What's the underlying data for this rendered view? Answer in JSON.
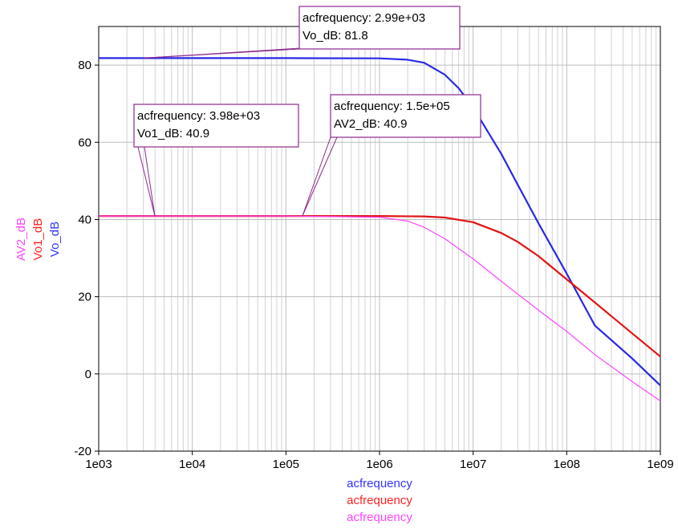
{
  "chart_data": {
    "type": "line",
    "x_scale": "log",
    "xlim": [
      1000,
      1000000000
    ],
    "ylim": [
      -20,
      90
    ],
    "grid": true,
    "x_ticks": [
      {
        "value": 1000,
        "label": "1e03"
      },
      {
        "value": 10000,
        "label": "1e04"
      },
      {
        "value": 100000,
        "label": "1e05"
      },
      {
        "value": 1000000,
        "label": "1e06"
      },
      {
        "value": 10000000,
        "label": "1e07"
      },
      {
        "value": 100000000,
        "label": "1e08"
      },
      {
        "value": 1000000000,
        "label": "1e09"
      }
    ],
    "y_ticks": [
      {
        "value": -20,
        "label": "-20"
      },
      {
        "value": 0,
        "label": "0"
      },
      {
        "value": 20,
        "label": "20"
      },
      {
        "value": 40,
        "label": "40"
      },
      {
        "value": 60,
        "label": "60"
      },
      {
        "value": 80,
        "label": "80"
      }
    ],
    "x_labels": [
      {
        "text": "acfrequency",
        "color": "#3333ff"
      },
      {
        "text": "acfrequency",
        "color": "#ff2222"
      },
      {
        "text": "acfrequency",
        "color": "#ff44ff"
      }
    ],
    "y_labels": [
      {
        "text": "AV2_dB",
        "color": "#ff44ff"
      },
      {
        "text": "Vo1_dB",
        "color": "#ff2222"
      },
      {
        "text": "Vo_dB",
        "color": "#3333ff"
      }
    ],
    "series": [
      {
        "name": "Vo_dB",
        "color": "#2a2ae6",
        "points": [
          [
            1000,
            81.8
          ],
          [
            100000,
            81.8
          ],
          [
            1000000,
            81.75
          ],
          [
            2000000,
            81.4
          ],
          [
            3000000,
            80.6
          ],
          [
            5000000,
            77.5
          ],
          [
            7000000,
            74.0
          ],
          [
            10000000,
            69.0
          ],
          [
            15000000,
            62.0
          ],
          [
            20000000,
            57.0
          ],
          [
            30000000,
            49.0
          ],
          [
            50000000,
            39.0
          ],
          [
            100000000,
            26.0
          ],
          [
            200000000,
            12.5
          ],
          [
            500000000,
            4.0
          ],
          [
            1000000000,
            -3.0
          ]
        ]
      },
      {
        "name": "Vo1_dB",
        "color": "#e01515",
        "points": [
          [
            1000,
            40.9
          ],
          [
            100000,
            40.9
          ],
          [
            1000000,
            40.9
          ],
          [
            3000000,
            40.8
          ],
          [
            5000000,
            40.5
          ],
          [
            10000000,
            39.3
          ],
          [
            20000000,
            36.5
          ],
          [
            30000000,
            34.2
          ],
          [
            50000000,
            30.5
          ],
          [
            100000000,
            24.5
          ],
          [
            200000000,
            18.5
          ],
          [
            500000000,
            10.5
          ],
          [
            1000000000,
            4.5
          ]
        ]
      },
      {
        "name": "AV2_dB",
        "color": "#ff44ff",
        "points": [
          [
            1000,
            40.9
          ],
          [
            100000,
            40.9
          ],
          [
            1000000,
            40.6
          ],
          [
            2000000,
            39.6
          ],
          [
            3000000,
            38.0
          ],
          [
            5000000,
            35.0
          ],
          [
            10000000,
            29.8
          ],
          [
            20000000,
            24.0
          ],
          [
            50000000,
            16.5
          ],
          [
            100000000,
            11.0
          ],
          [
            200000000,
            5.0
          ],
          [
            500000000,
            -2.0
          ],
          [
            1000000000,
            -7.0
          ]
        ]
      }
    ],
    "annotations": [
      {
        "line1": "acfrequency: 2.99e+03",
        "line2": "Vo_dB: 81.8",
        "x": 2990,
        "y": 81.8
      },
      {
        "line1": "acfrequency: 3.98e+03",
        "line2": "Vo1_dB: 40.9",
        "x": 3980,
        "y": 40.9
      },
      {
        "line1": "acfrequency: 1.5e+05",
        "line2": "AV2_dB: 40.9",
        "x": 150000,
        "y": 40.9
      }
    ],
    "marker_color": "#8b2a8b"
  }
}
